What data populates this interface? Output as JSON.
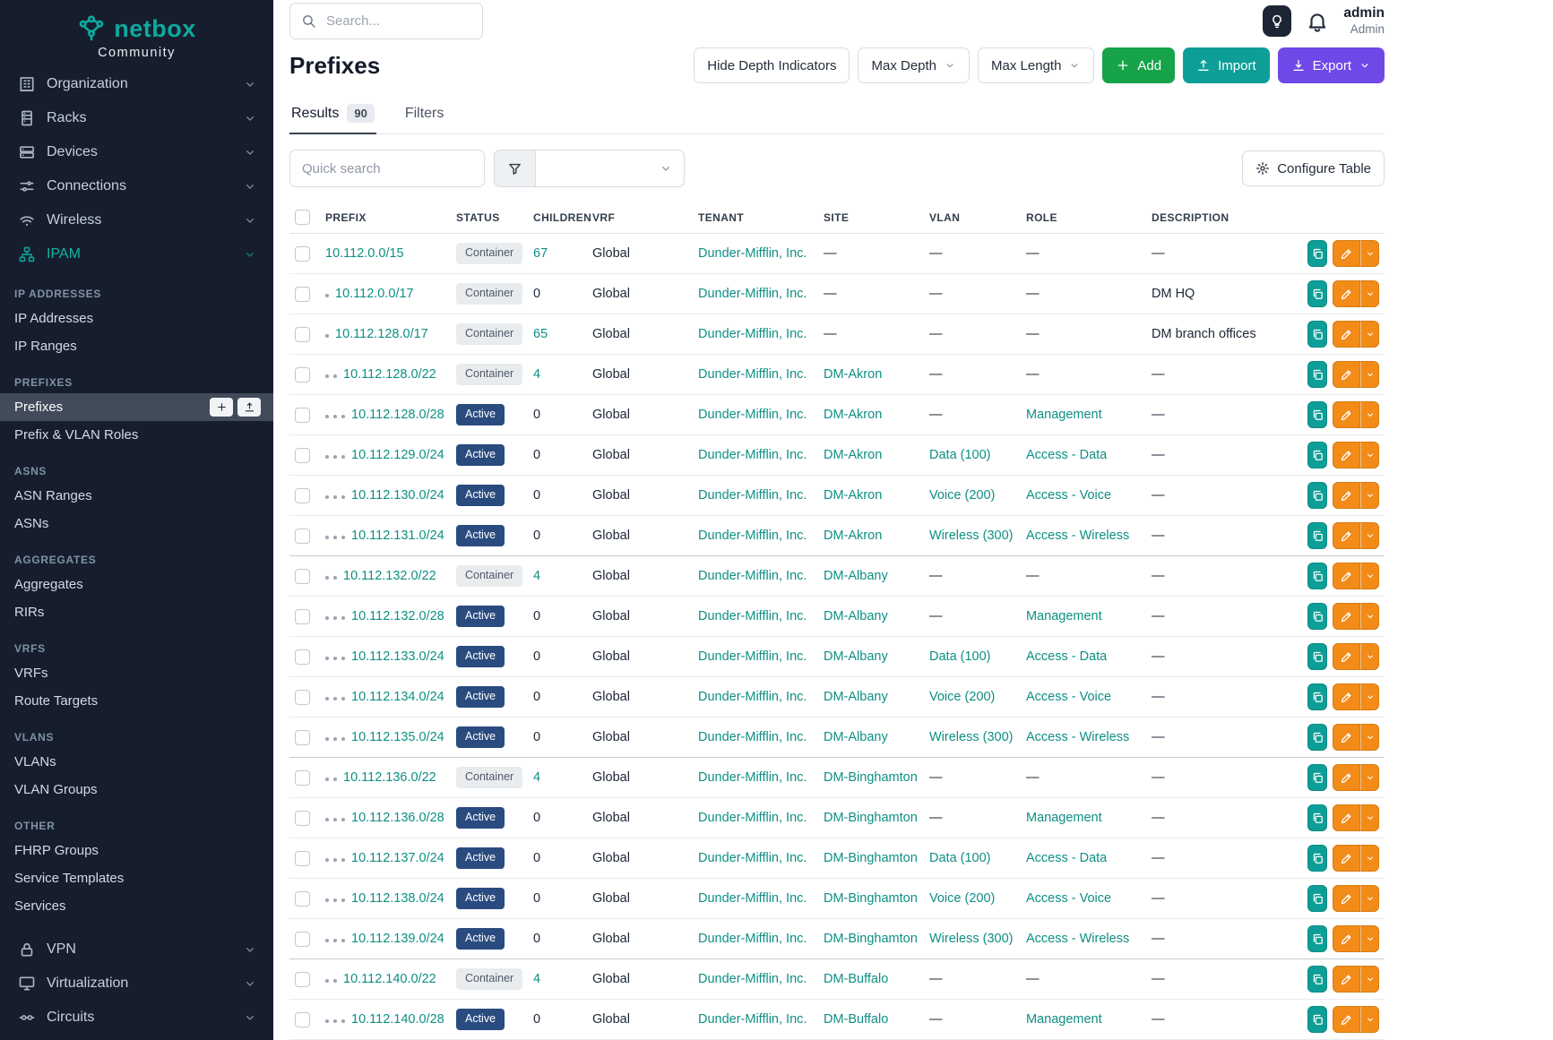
{
  "colors": {
    "sidebar_bg": "#161e2d",
    "brand_teal": "#0fa99e",
    "link_teal": "#0e8f84",
    "active_badge_blue": "#2a4b80",
    "container_badge_gray": "#e9ecef",
    "add_green": "#16a34a",
    "import_teal": "#0d9f97",
    "export_purple": "#7048e8",
    "edit_orange": "#f28b18"
  },
  "sidebar": {
    "brand": "netbox",
    "brand_subtitle": "Community",
    "nav_top": [
      {
        "label": "Organization",
        "icon": "building-icon"
      },
      {
        "label": "Racks",
        "icon": "rack-icon"
      },
      {
        "label": "Devices",
        "icon": "devices-icon"
      },
      {
        "label": "Connections",
        "icon": "connections-icon"
      },
      {
        "label": "Wireless",
        "icon": "wifi-icon"
      },
      {
        "label": "IPAM",
        "icon": "sitemap-icon",
        "active": true
      }
    ],
    "sections": [
      {
        "header": "IP ADDRESSES",
        "items": [
          "IP Addresses",
          "IP Ranges"
        ]
      },
      {
        "header": "PREFIXES",
        "items": [
          "Prefixes",
          "Prefix & VLAN Roles"
        ],
        "active_item": "Prefixes"
      },
      {
        "header": "ASNS",
        "items": [
          "ASN Ranges",
          "ASNs"
        ]
      },
      {
        "header": "AGGREGATES",
        "items": [
          "Aggregates",
          "RIRs"
        ]
      },
      {
        "header": "VRFS",
        "items": [
          "VRFs",
          "Route Targets"
        ]
      },
      {
        "header": "VLANS",
        "items": [
          "VLANs",
          "VLAN Groups"
        ]
      },
      {
        "header": "OTHER",
        "items": [
          "FHRP Groups",
          "Service Templates",
          "Services"
        ]
      }
    ],
    "nav_bottom": [
      {
        "label": "VPN",
        "icon": "lock-icon"
      },
      {
        "label": "Virtualization",
        "icon": "monitor-icon"
      },
      {
        "label": "Circuits",
        "icon": "circuit-icon"
      }
    ]
  },
  "topbar": {
    "search_placeholder": "Search...",
    "user_name": "admin",
    "user_role": "Admin"
  },
  "page": {
    "title": "Prefixes",
    "hide_depth_label": "Hide Depth Indicators",
    "max_depth_label": "Max Depth",
    "max_length_label": "Max Length",
    "add_label": "Add",
    "import_label": "Import",
    "export_label": "Export",
    "tabs": [
      {
        "label": "Results",
        "badge": "90",
        "active": true
      },
      {
        "label": "Filters",
        "active": false
      }
    ],
    "quick_search_placeholder": "Quick search",
    "configure_table_label": "Configure Table"
  },
  "table": {
    "columns": [
      "PREFIX",
      "STATUS",
      "CHILDREN",
      "VRF",
      "TENANT",
      "SITE",
      "VLAN",
      "ROLE",
      "DESCRIPTION"
    ],
    "empty_value": "—",
    "row_action_icons": [
      "copy-icon",
      "pencil-icon",
      "chevron-down-icon"
    ],
    "rows": [
      {
        "depth": 0,
        "prefix": "10.112.0.0/15",
        "status": "Container",
        "children": "67",
        "vrf": "Global",
        "tenant": "Dunder-Mifflin, Inc.",
        "site": "—",
        "vlan": "—",
        "role": "—",
        "description": "—"
      },
      {
        "depth": 1,
        "prefix": "10.112.0.0/17",
        "status": "Container",
        "children": "0",
        "vrf": "Global",
        "tenant": "Dunder-Mifflin, Inc.",
        "site": "—",
        "vlan": "—",
        "role": "—",
        "description": "DM HQ"
      },
      {
        "depth": 1,
        "prefix": "10.112.128.0/17",
        "status": "Container",
        "children": "65",
        "vrf": "Global",
        "tenant": "Dunder-Mifflin, Inc.",
        "site": "—",
        "vlan": "—",
        "role": "—",
        "description": "DM branch offices"
      },
      {
        "depth": 2,
        "prefix": "10.112.128.0/22",
        "status": "Container",
        "children": "4",
        "vrf": "Global",
        "tenant": "Dunder-Mifflin, Inc.",
        "site": "DM-Akron",
        "vlan": "—",
        "role": "—",
        "description": "—"
      },
      {
        "depth": 3,
        "prefix": "10.112.128.0/28",
        "status": "Active",
        "children": "0",
        "vrf": "Global",
        "tenant": "Dunder-Mifflin, Inc.",
        "site": "DM-Akron",
        "vlan": "—",
        "role": "Management",
        "description": "—"
      },
      {
        "depth": 3,
        "prefix": "10.112.129.0/24",
        "status": "Active",
        "children": "0",
        "vrf": "Global",
        "tenant": "Dunder-Mifflin, Inc.",
        "site": "DM-Akron",
        "vlan": "Data (100)",
        "role": "Access - Data",
        "description": "—"
      },
      {
        "depth": 3,
        "prefix": "10.112.130.0/24",
        "status": "Active",
        "children": "0",
        "vrf": "Global",
        "tenant": "Dunder-Mifflin, Inc.",
        "site": "DM-Akron",
        "vlan": "Voice (200)",
        "role": "Access - Voice",
        "description": "—"
      },
      {
        "depth": 3,
        "prefix": "10.112.131.0/24",
        "status": "Active",
        "children": "0",
        "vrf": "Global",
        "tenant": "Dunder-Mifflin, Inc.",
        "site": "DM-Akron",
        "vlan": "Wireless (300)",
        "role": "Access - Wireless",
        "description": "—"
      },
      {
        "depth": 2,
        "prefix": "10.112.132.0/22",
        "status": "Container",
        "children": "4",
        "vrf": "Global",
        "tenant": "Dunder-Mifflin, Inc.",
        "site": "DM-Albany",
        "vlan": "—",
        "role": "—",
        "description": "—",
        "group_start": true
      },
      {
        "depth": 3,
        "prefix": "10.112.132.0/28",
        "status": "Active",
        "children": "0",
        "vrf": "Global",
        "tenant": "Dunder-Mifflin, Inc.",
        "site": "DM-Albany",
        "vlan": "—",
        "role": "Management",
        "description": "—"
      },
      {
        "depth": 3,
        "prefix": "10.112.133.0/24",
        "status": "Active",
        "children": "0",
        "vrf": "Global",
        "tenant": "Dunder-Mifflin, Inc.",
        "site": "DM-Albany",
        "vlan": "Data (100)",
        "role": "Access - Data",
        "description": "—"
      },
      {
        "depth": 3,
        "prefix": "10.112.134.0/24",
        "status": "Active",
        "children": "0",
        "vrf": "Global",
        "tenant": "Dunder-Mifflin, Inc.",
        "site": "DM-Albany",
        "vlan": "Voice (200)",
        "role": "Access - Voice",
        "description": "—"
      },
      {
        "depth": 3,
        "prefix": "10.112.135.0/24",
        "status": "Active",
        "children": "0",
        "vrf": "Global",
        "tenant": "Dunder-Mifflin, Inc.",
        "site": "DM-Albany",
        "vlan": "Wireless (300)",
        "role": "Access - Wireless",
        "description": "—"
      },
      {
        "depth": 2,
        "prefix": "10.112.136.0/22",
        "status": "Container",
        "children": "4",
        "vrf": "Global",
        "tenant": "Dunder-Mifflin, Inc.",
        "site": "DM-Binghamton",
        "vlan": "—",
        "role": "—",
        "description": "—",
        "group_start": true
      },
      {
        "depth": 3,
        "prefix": "10.112.136.0/28",
        "status": "Active",
        "children": "0",
        "vrf": "Global",
        "tenant": "Dunder-Mifflin, Inc.",
        "site": "DM-Binghamton",
        "vlan": "—",
        "role": "Management",
        "description": "—"
      },
      {
        "depth": 3,
        "prefix": "10.112.137.0/24",
        "status": "Active",
        "children": "0",
        "vrf": "Global",
        "tenant": "Dunder-Mifflin, Inc.",
        "site": "DM-Binghamton",
        "vlan": "Data (100)",
        "role": "Access - Data",
        "description": "—"
      },
      {
        "depth": 3,
        "prefix": "10.112.138.0/24",
        "status": "Active",
        "children": "0",
        "vrf": "Global",
        "tenant": "Dunder-Mifflin, Inc.",
        "site": "DM-Binghamton",
        "vlan": "Voice (200)",
        "role": "Access - Voice",
        "description": "—"
      },
      {
        "depth": 3,
        "prefix": "10.112.139.0/24",
        "status": "Active",
        "children": "0",
        "vrf": "Global",
        "tenant": "Dunder-Mifflin, Inc.",
        "site": "DM-Binghamton",
        "vlan": "Wireless (300)",
        "role": "Access - Wireless",
        "description": "—"
      },
      {
        "depth": 2,
        "prefix": "10.112.140.0/22",
        "status": "Container",
        "children": "4",
        "vrf": "Global",
        "tenant": "Dunder-Mifflin, Inc.",
        "site": "DM-Buffalo",
        "vlan": "—",
        "role": "—",
        "description": "—",
        "group_start": true
      },
      {
        "depth": 3,
        "prefix": "10.112.140.0/28",
        "status": "Active",
        "children": "0",
        "vrf": "Global",
        "tenant": "Dunder-Mifflin, Inc.",
        "site": "DM-Buffalo",
        "vlan": "—",
        "role": "Management",
        "description": "—"
      }
    ]
  }
}
